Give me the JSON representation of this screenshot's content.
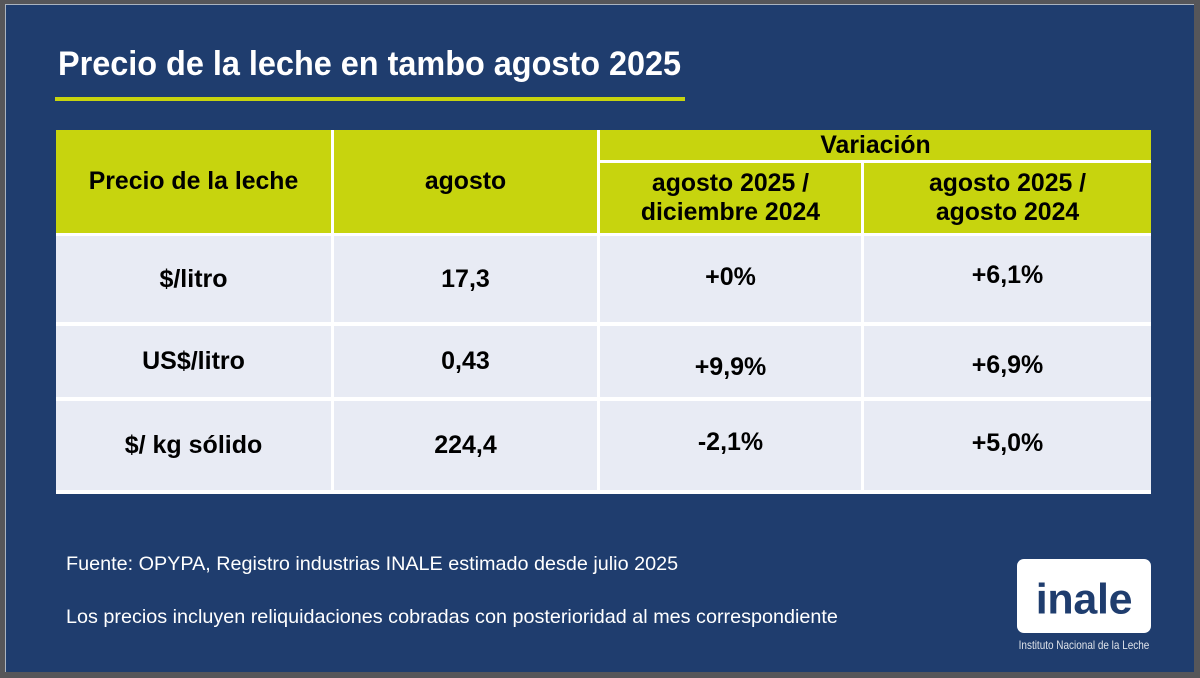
{
  "slide": {
    "title": "Precio de la leche en tambo agosto 2025"
  },
  "table": {
    "header": {
      "col1": "Precio de la leche",
      "col2": "agosto",
      "variation": "Variación",
      "col3_line1": "agosto 2025 /",
      "col3_line2": "diciembre 2024",
      "col4_line1": "agosto 2025 /",
      "col4_line2": "agosto 2024"
    },
    "rows": [
      {
        "label": "$/litro",
        "value": "17,3",
        "var_dec": "+0%",
        "var_year": "+6,1%"
      },
      {
        "label": "US$/litro",
        "value": "0,43",
        "var_dec": "+9,9%",
        "var_year": "+6,9%"
      },
      {
        "label": "$/ kg sólido",
        "value": "224,4",
        "var_dec": "-2,1%",
        "var_year": "+5,0%"
      }
    ]
  },
  "footer": {
    "line1": "Fuente: OPYPA, Registro industrias INALE estimado desde julio 2025",
    "line2": "Los precios incluyen reliquidaciones cobradas con posterioridad al mes correspondiente"
  },
  "logo": {
    "name": "inale",
    "caption": "Instituto Nacional de la Leche"
  },
  "colors": {
    "slide_background": "#1f3d6e",
    "accent_yellow": "#c7d40e",
    "row_lavender": "#e8ebf4",
    "frame_gray": "#565659",
    "text_white": "#ffffff",
    "text_black": "#000000"
  }
}
